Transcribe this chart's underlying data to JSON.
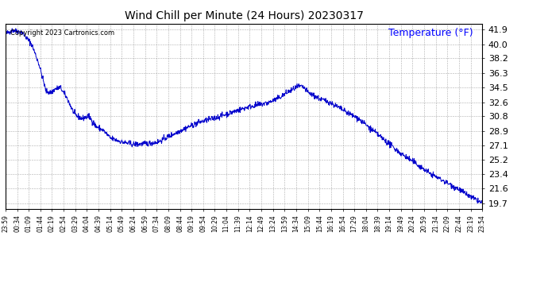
{
  "title": "Wind Chill per Minute (24 Hours) 20230317",
  "ylabel": "Temperature (°F)",
  "copyright_text": "Copyright 2023 Cartronics.com",
  "line_color": "#0000cc",
  "background_color": "#ffffff",
  "grid_color": "#999999",
  "yticks": [
    19.7,
    21.6,
    23.4,
    25.2,
    27.1,
    28.9,
    30.8,
    32.6,
    34.5,
    36.3,
    38.2,
    40.0,
    41.9
  ],
  "ymin": 19.0,
  "ymax": 42.6,
  "xtick_labels": [
    "23:59",
    "00:34",
    "01:09",
    "01:44",
    "02:19",
    "02:54",
    "03:29",
    "04:04",
    "04:39",
    "05:14",
    "05:49",
    "06:24",
    "06:59",
    "07:34",
    "08:09",
    "08:44",
    "09:19",
    "09:54",
    "10:29",
    "11:04",
    "11:39",
    "12:14",
    "12:49",
    "13:24",
    "13:59",
    "14:34",
    "15:09",
    "15:44",
    "16:19",
    "16:54",
    "17:29",
    "18:04",
    "18:39",
    "19:14",
    "19:49",
    "20:24",
    "20:59",
    "21:34",
    "22:09",
    "22:44",
    "23:19",
    "23:54"
  ],
  "num_points": 1440,
  "control_x": [
    0.0,
    0.015,
    0.035,
    0.055,
    0.07,
    0.085,
    0.095,
    0.105,
    0.115,
    0.13,
    0.145,
    0.16,
    0.175,
    0.19,
    0.205,
    0.22,
    0.245,
    0.27,
    0.295,
    0.32,
    0.345,
    0.375,
    0.405,
    0.435,
    0.46,
    0.485,
    0.51,
    0.535,
    0.555,
    0.575,
    0.59,
    0.605,
    0.615,
    0.625,
    0.635,
    0.645,
    0.66,
    0.68,
    0.71,
    0.74,
    0.77,
    0.8,
    0.83,
    0.86,
    0.89,
    0.92,
    0.95,
    0.975,
    1.0
  ],
  "control_y": [
    41.3,
    41.8,
    41.5,
    40.0,
    37.5,
    34.0,
    33.8,
    34.3,
    34.5,
    33.0,
    31.0,
    30.5,
    30.8,
    29.5,
    29.0,
    28.0,
    27.5,
    27.2,
    27.3,
    27.5,
    28.3,
    29.2,
    30.0,
    30.5,
    31.0,
    31.5,
    32.0,
    32.3,
    32.6,
    33.2,
    33.8,
    34.3,
    34.6,
    34.5,
    33.8,
    33.5,
    33.0,
    32.6,
    31.5,
    30.5,
    29.0,
    27.5,
    26.0,
    24.8,
    23.5,
    22.5,
    21.5,
    20.5,
    19.7
  ],
  "noise_std": 0.18,
  "noise_seed": 42
}
